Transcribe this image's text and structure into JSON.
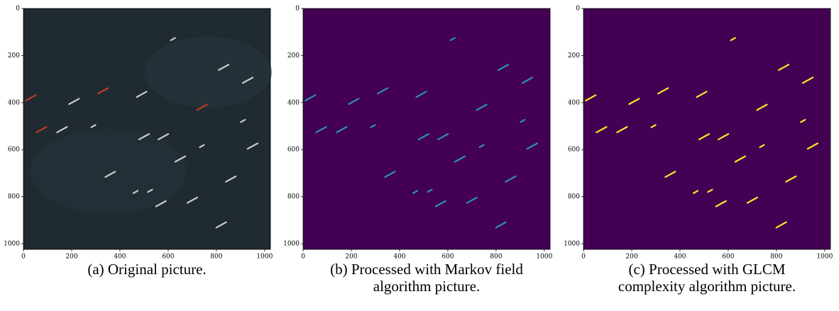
{
  "chart_data": [
    {
      "type": "image",
      "caption": "(a) Original picture.",
      "xlim": [
        0,
        1024
      ],
      "ylim": [
        1024,
        0
      ],
      "xticks": [
        0,
        200,
        400,
        600,
        800,
        1000
      ],
      "yticks": [
        0,
        200,
        400,
        600,
        800,
        1000
      ],
      "background": "#1f2a31",
      "color": "#c8ccd0"
    },
    {
      "type": "image",
      "caption": "(b) Processed with Markov field algorithm picture.",
      "xlim": [
        0,
        1024
      ],
      "ylim": [
        1024,
        0
      ],
      "xticks": [
        0,
        200,
        400,
        600,
        800,
        1000
      ],
      "yticks": [
        0,
        200,
        400,
        600,
        800,
        1000
      ],
      "background": "#440154",
      "color": "#2a8fbd"
    },
    {
      "type": "image",
      "caption": "(c) Processed with GLCM complexity algorithm picture.",
      "xlim": [
        0,
        1024
      ],
      "ylim": [
        1024,
        0
      ],
      "xticks": [
        0,
        200,
        400,
        600,
        800,
        1000
      ],
      "yticks": [
        0,
        200,
        400,
        600,
        800,
        1000
      ],
      "background": "#440154",
      "color": "#fde725"
    }
  ]
}
